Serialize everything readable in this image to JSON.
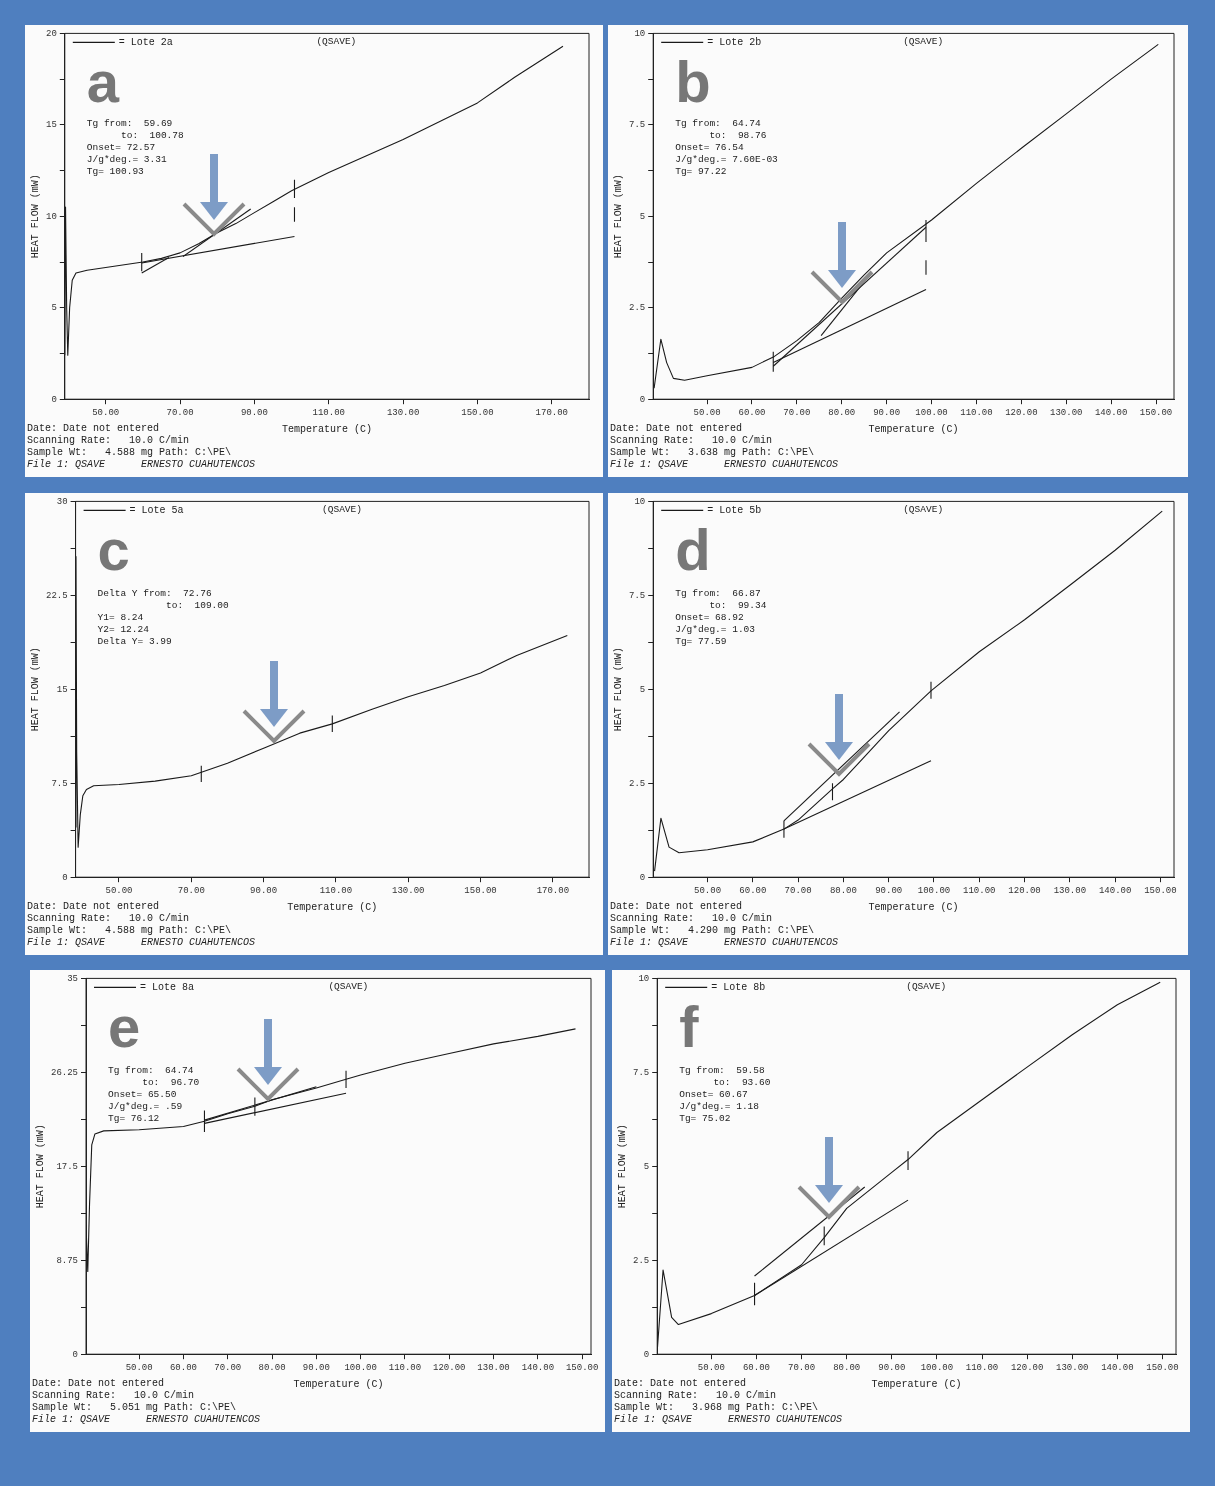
{
  "chart_data": [
    {
      "type": "line",
      "xlabel": "Temperature (C)",
      "ylabel": "HEAT FLOW (mW)",
      "legend": "top left",
      "annotations": [
        "a",
        "(QSAVE)",
        "Tg from:  59.69",
        "      to:  100.78",
        "Onset= 72.57",
        "J/g*deg.= 3.31",
        "Tg= 100.93",
        "Date: Date not entered",
        "Scanning Rate:   10.0 C/min",
        "Sample Wt:   4.588 mg Path: C:\\PE\\",
        "File 1: QSAVE      ERNESTO CUAHUTENCOS"
      ],
      "xlim": [
        39,
        180
      ],
      "xticks": [
        {
          "value": 50,
          "label": "50.00"
        },
        {
          "value": 70,
          "label": "70.00"
        },
        {
          "value": 90,
          "label": "90.00"
        },
        {
          "value": 110,
          "label": "110.00"
        },
        {
          "value": 130,
          "label": "130.00"
        },
        {
          "value": 150,
          "label": "150.00"
        },
        {
          "value": 170,
          "label": "170.00"
        }
      ],
      "ylim": [
        0,
        20
      ],
      "yticks": [
        0,
        {
          "value": 2.5,
          "label": null
        },
        5,
        {
          "value": 7.5,
          "label": null
        },
        10,
        {
          "value": 12.5,
          "label": null
        },
        15,
        {
          "value": 17.5,
          "label": null
        },
        20
      ],
      "series": [
        {
          "name": "= Lote 2a",
          "color": "#1a1a1a",
          "x": [
            39.0,
            39.2,
            39.5,
            39.8,
            40.3,
            41,
            42,
            45,
            50,
            60,
            65,
            70,
            75,
            80,
            85,
            90,
            95,
            100,
            110,
            120,
            130,
            140,
            150,
            160,
            173
          ],
          "values": [
            2.4,
            10.5,
            5,
            2.4,
            5,
            6.5,
            6.9,
            7.05,
            7.2,
            7.5,
            7.7,
            8.0,
            8.5,
            9.1,
            9.6,
            10.2,
            10.8,
            11.4,
            12.4,
            13.3,
            14.2,
            15.2,
            16.2,
            17.6,
            19.3
          ]
        },
        {
          "color": "#1a1a1a",
          "x": [
            59.69,
            100.78
          ],
          "values": [
            7.45,
            8.9
          ]
        },
        {
          "color": "#1a1a1a",
          "x": [
            70.8,
            89
          ],
          "values": [
            7.8,
            10.4
          ]
        },
        {
          "color": "#1a1a1a",
          "x": [
            59.69,
            67
          ],
          "values": [
            6.9,
            7.75
          ]
        },
        {
          "color": "#1a1a1a",
          "x": [
            59.69,
            59.69
          ],
          "values": [
            7.0,
            8.0
          ]
        },
        {
          "color": "#1a1a1a",
          "x": [
            100.78,
            100.78
          ],
          "values": [
            11.0,
            12.0
          ]
        },
        {
          "color": "#1a1a1a",
          "x": [
            100.78,
            100.78
          ],
          "values": [
            9.7,
            10.5
          ]
        }
      ]
    },
    {
      "type": "line",
      "xlabel": "Temperature (C)",
      "ylabel": "HEAT FLOW (mW)",
      "legend": "top left",
      "annotations": [
        "b",
        "(QSAVE)",
        "Tg from:  64.74",
        "      to:  98.76",
        "Onset= 76.54",
        "J/g*deg.= 7.60E-03",
        "Tg= 97.22",
        "Date: Date not entered",
        "Scanning Rate:   10.0 C/min",
        "Sample Wt:   3.638 mg Path: C:\\PE\\",
        "File 1: QSAVE      ERNESTO CUAHUTENCOS"
      ],
      "xlim": [
        38,
        154
      ],
      "xticks": [
        {
          "value": 50,
          "label": "50.00"
        },
        {
          "value": 60,
          "label": "60.00"
        },
        {
          "value": 70,
          "label": "70.00"
        },
        {
          "value": 80,
          "label": "80.00"
        },
        {
          "value": 90,
          "label": "90.00"
        },
        {
          "value": 100,
          "label": "100.00"
        },
        {
          "value": 110,
          "label": "110.00"
        },
        {
          "value": 120,
          "label": "120.00"
        },
        {
          "value": 130,
          "label": "130.00"
        },
        {
          "value": 140,
          "label": "140.00"
        },
        {
          "value": 150,
          "label": "150.00"
        }
      ],
      "ylim": [
        0,
        10
      ],
      "yticks": [
        0,
        {
          "value": 1.25,
          "label": null
        },
        2.5,
        {
          "value": 3.75,
          "label": null
        },
        5,
        {
          "value": 6.25,
          "label": null
        },
        7.5,
        {
          "value": 8.75,
          "label": null
        },
        10
      ],
      "series": [
        {
          "name": "= Lote 2b",
          "color": "#1a1a1a",
          "x": [
            38.2,
            39.7,
            41,
            42.5,
            45,
            50,
            60,
            65,
            70,
            75,
            80,
            85,
            90,
            100,
            110,
            120,
            130,
            140,
            150.5
          ],
          "values": [
            0.3,
            1.64,
            1.0,
            0.57,
            0.52,
            0.64,
            0.87,
            1.17,
            1.6,
            2.1,
            2.76,
            3.4,
            4.0,
            4.9,
            5.9,
            6.86,
            7.8,
            8.75,
            9.7
          ]
        },
        {
          "color": "#1a1a1a",
          "x": [
            64.74,
            98.76
          ],
          "values": [
            1.0,
            3.0
          ]
        },
        {
          "color": "#1a1a1a",
          "x": [
            64.74,
            98.76
          ],
          "values": [
            0.9,
            4.7
          ]
        },
        {
          "color": "#1a1a1a",
          "x": [
            75.4,
            86.2
          ],
          "values": [
            1.74,
            3.4
          ]
        },
        {
          "color": "#1a1a1a",
          "x": [
            64.74,
            64.74
          ],
          "values": [
            0.75,
            1.3
          ]
        },
        {
          "color": "#1a1a1a",
          "x": [
            98.76,
            98.76
          ],
          "values": [
            4.3,
            4.9
          ]
        },
        {
          "color": "#1a1a1a",
          "x": [
            98.76,
            98.76
          ],
          "values": [
            3.4,
            3.8
          ]
        }
      ]
    },
    {
      "type": "line",
      "xlabel": "Temperature (C)",
      "ylabel": "HEAT FLOW (mW)",
      "legend": "top left",
      "annotations": [
        "c",
        "(QSAVE)",
        "Delta Y from:  72.76",
        "            to:  109.00",
        "Y1= 8.24",
        "Y2= 12.24",
        "Delta Y= 3.99",
        "Date: Date not entered",
        "Scanning Rate:   10.0 C/min",
        "Sample Wt:   4.588 mg Path: C:\\PE\\",
        "File 1: QSAVE      ERNESTO CUAHUTENCOS"
      ],
      "xlim": [
        38,
        180
      ],
      "xticks": [
        {
          "value": 50,
          "label": "50.00"
        },
        {
          "value": 70,
          "label": "70.00"
        },
        {
          "value": 90,
          "label": "90.00"
        },
        {
          "value": 110,
          "label": "110.00"
        },
        {
          "value": 130,
          "label": "130.00"
        },
        {
          "value": 150,
          "label": "150.00"
        },
        {
          "value": 170,
          "label": "170.00"
        }
      ],
      "ylim": [
        0,
        30
      ],
      "yticks": [
        0,
        {
          "value": 3.75,
          "label": null
        },
        7.5,
        {
          "value": 11.25,
          "label": null
        },
        15,
        {
          "value": 18.75,
          "label": null
        },
        22.5,
        {
          "value": 26.25,
          "label": null
        },
        30
      ],
      "series": [
        {
          "name": "= Lote 5a",
          "color": "#1a1a1a",
          "x": [
            38.0,
            38.1,
            38.3,
            38.7,
            39.3,
            40,
            41,
            43,
            50,
            60,
            70,
            80,
            90,
            100,
            109,
            120,
            130,
            140,
            150,
            160,
            174
          ],
          "values": [
            4,
            25.6,
            10,
            2.4,
            5,
            6.5,
            7.0,
            7.3,
            7.4,
            7.67,
            8.1,
            9.1,
            10.3,
            11.5,
            12.24,
            13.4,
            14.4,
            15.3,
            16.3,
            17.7,
            19.3
          ]
        },
        {
          "color": "#1a1a1a",
          "x": [
            72.76,
            72.76
          ],
          "values": [
            7.6,
            8.9
          ]
        },
        {
          "color": "#1a1a1a",
          "x": [
            109,
            109
          ],
          "values": [
            11.6,
            12.9
          ]
        }
      ]
    },
    {
      "type": "line",
      "xlabel": "Temperature (C)",
      "ylabel": "HEAT FLOW (mW)",
      "legend": "top left",
      "annotations": [
        "d",
        "(QSAVE)",
        "Tg from:  66.87",
        "      to:  99.34",
        "Onset= 68.92",
        "J/g*deg.= 1.03",
        "Tg= 77.59",
        "Date: Date not entered",
        "Scanning Rate:   10.0 C/min",
        "Sample Wt:   4.290 mg Path: C:\\PE\\",
        "File 1: QSAVE      ERNESTO CUAHUTENCOS"
      ],
      "xlim": [
        38,
        153
      ],
      "xticks": [
        {
          "value": 50,
          "label": "50.00"
        },
        {
          "value": 60,
          "label": "60.00"
        },
        {
          "value": 70,
          "label": "70.00"
        },
        {
          "value": 80,
          "label": "80.00"
        },
        {
          "value": 90,
          "label": "90.00"
        },
        {
          "value": 100,
          "label": "100.00"
        },
        {
          "value": 110,
          "label": "110.00"
        },
        {
          "value": 120,
          "label": "120.00"
        },
        {
          "value": 130,
          "label": "130.00"
        },
        {
          "value": 140,
          "label": "140.00"
        },
        {
          "value": 150,
          "label": "150.00"
        }
      ],
      "ylim": [
        0,
        10
      ],
      "yticks": [
        0,
        {
          "value": 1.25,
          "label": null
        },
        2.5,
        {
          "value": 3.75,
          "label": null
        },
        5,
        {
          "value": 6.25,
          "label": null
        },
        7.5,
        {
          "value": 8.75,
          "label": null
        },
        10
      ],
      "series": [
        {
          "name": "= Lote 5b",
          "color": "#1a1a1a",
          "x": [
            38.3,
            39.7,
            41.5,
            43.7,
            50,
            60,
            66.87,
            70,
            77.59,
            80,
            90,
            99.34,
            110,
            120,
            130,
            140,
            150.4
          ],
          "values": [
            0.16,
            1.57,
            0.8,
            0.65,
            0.73,
            0.94,
            1.28,
            1.52,
            2.35,
            2.6,
            3.9,
            4.96,
            6.0,
            6.85,
            7.77,
            8.7,
            9.74
          ]
        },
        {
          "color": "#1a1a1a",
          "x": [
            66.87,
            99.34
          ],
          "values": [
            1.28,
            3.1
          ]
        },
        {
          "color": "#1a1a1a",
          "x": [
            66.87,
            92.4
          ],
          "values": [
            1.5,
            4.4
          ]
        },
        {
          "color": "#1a1a1a",
          "x": [
            66.87,
            66.87
          ],
          "values": [
            1.05,
            1.5
          ]
        },
        {
          "color": "#1a1a1a",
          "x": [
            77.59,
            77.59
          ],
          "values": [
            2.05,
            2.5
          ]
        },
        {
          "color": "#1a1a1a",
          "x": [
            99.34,
            99.34
          ],
          "values": [
            4.75,
            5.2
          ]
        }
      ]
    },
    {
      "type": "line",
      "xlabel": "Temperature (C)",
      "ylabel": "HEAT FLOW (mW)",
      "legend": "top left",
      "annotations": [
        "e",
        "(QSAVE)",
        "Tg from:  64.74",
        "      to:  96.70",
        "Onset= 65.50",
        "J/g*deg.= .59",
        "Tg= 76.12",
        "Date: Date not entered",
        "Scanning Rate:   10.0 C/min",
        "Sample Wt:   5.051 mg Path: C:\\PE\\",
        "File 1: QSAVE      ERNESTO CUAHUTENCOS"
      ],
      "xlim": [
        38,
        152
      ],
      "xticks": [
        {
          "value": 50,
          "label": "50.00"
        },
        {
          "value": 60,
          "label": "60.00"
        },
        {
          "value": 70,
          "label": "70.00"
        },
        {
          "value": 80,
          "label": "80.00"
        },
        {
          "value": 90,
          "label": "90.00"
        },
        {
          "value": 100,
          "label": "100.00"
        },
        {
          "value": 110,
          "label": "110.00"
        },
        {
          "value": 120,
          "label": "120.00"
        },
        {
          "value": 130,
          "label": "130.00"
        },
        {
          "value": 140,
          "label": "140.00"
        },
        {
          "value": 150,
          "label": "150.00"
        }
      ],
      "ylim": [
        0,
        35
      ],
      "yticks": [
        0,
        {
          "value": 4.375,
          "label": null
        },
        8.75,
        {
          "value": 13.125,
          "label": null
        },
        17.5,
        {
          "value": 21.875,
          "label": null
        },
        26.25,
        {
          "value": 30.625,
          "label": null
        },
        35
      ],
      "series": [
        {
          "name": "= Lote 8a",
          "color": "#1a1a1a",
          "x": [
            38.0,
            38.4,
            38.8,
            39.3,
            40,
            42,
            50,
            60,
            64.74,
            70,
            76.12,
            80,
            90,
            96.7,
            100,
            110,
            120,
            130,
            140,
            148.5
          ],
          "values": [
            12,
            7.7,
            14,
            19.5,
            20.5,
            20.8,
            20.9,
            21.2,
            21.7,
            22.4,
            23.1,
            23.7,
            24.8,
            25.6,
            26.0,
            27.1,
            28.0,
            28.9,
            29.6,
            30.3
          ]
        },
        {
          "color": "#1a1a1a",
          "x": [
            64.74,
            96.7
          ],
          "values": [
            21.5,
            24.3
          ]
        },
        {
          "color": "#1a1a1a",
          "x": [
            64.74,
            90
          ],
          "values": [
            21.8,
            24.9
          ]
        },
        {
          "color": "#1a1a1a",
          "x": [
            64.74,
            64.74
          ],
          "values": [
            20.7,
            22.7
          ]
        },
        {
          "color": "#1a1a1a",
          "x": [
            76.12,
            76.12
          ],
          "values": [
            22.2,
            23.9
          ]
        },
        {
          "color": "#1a1a1a",
          "x": [
            96.7,
            96.7
          ],
          "values": [
            24.8,
            26.4
          ]
        }
      ]
    },
    {
      "type": "line",
      "xlabel": "Temperature (C)",
      "ylabel": "HEAT FLOW (mW)",
      "legend": "top left",
      "annotations": [
        "f",
        "(QSAVE)",
        "Tg from:  59.58",
        "      to:  93.60",
        "Onset= 60.67",
        "J/g*deg.= 1.18",
        "Tg= 75.02",
        "Date: Date not entered",
        "Scanning Rate:   10.0 C/min",
        "Sample Wt:   3.968 mg Path: C:\\PE\\",
        "File 1: QSAVE      ERNESTO CUAHUTENCOS"
      ],
      "xlim": [
        38,
        153
      ],
      "xticks": [
        {
          "value": 50,
          "label": "50.00"
        },
        {
          "value": 60,
          "label": "60.00"
        },
        {
          "value": 70,
          "label": "70.00"
        },
        {
          "value": 80,
          "label": "80.00"
        },
        {
          "value": 90,
          "label": "90.00"
        },
        {
          "value": 100,
          "label": "100.00"
        },
        {
          "value": 110,
          "label": "110.00"
        },
        {
          "value": 120,
          "label": "120.00"
        },
        {
          "value": 130,
          "label": "130.00"
        },
        {
          "value": 140,
          "label": "140.00"
        },
        {
          "value": 150,
          "label": "150.00"
        }
      ],
      "ylim": [
        0,
        10
      ],
      "yticks": [
        0,
        {
          "value": 1.25,
          "label": null
        },
        2.5,
        {
          "value": 3.75,
          "label": null
        },
        5,
        {
          "value": 6.25,
          "label": null
        },
        7.5,
        {
          "value": 8.75,
          "label": null
        },
        10
      ],
      "series": [
        {
          "name": "= Lote 8b",
          "color": "#1a1a1a",
          "x": [
            38.0,
            39.3,
            41.2,
            42.7,
            50,
            59.58,
            70,
            75.02,
            80,
            90,
            93.6,
            100,
            110,
            120,
            130,
            140,
            149.5
          ],
          "values": [
            0.07,
            2.24,
            0.98,
            0.79,
            1.08,
            1.56,
            2.38,
            3.1,
            3.88,
            4.84,
            5.18,
            5.9,
            6.77,
            7.64,
            8.5,
            9.3,
            9.9
          ]
        },
        {
          "color": "#1a1a1a",
          "x": [
            59.58,
            93.6
          ],
          "values": [
            1.56,
            4.1
          ]
        },
        {
          "color": "#1a1a1a",
          "x": [
            59.58,
            84
          ],
          "values": [
            2.08,
            4.45
          ]
        },
        {
          "color": "#1a1a1a",
          "x": [
            59.58,
            59.58
          ],
          "values": [
            1.3,
            1.9
          ]
        },
        {
          "color": "#1a1a1a",
          "x": [
            75.02,
            75.02
          ],
          "values": [
            2.9,
            3.4
          ]
        },
        {
          "color": "#1a1a1a",
          "x": [
            93.6,
            93.6
          ],
          "values": [
            4.9,
            5.4
          ]
        }
      ]
    }
  ]
}
